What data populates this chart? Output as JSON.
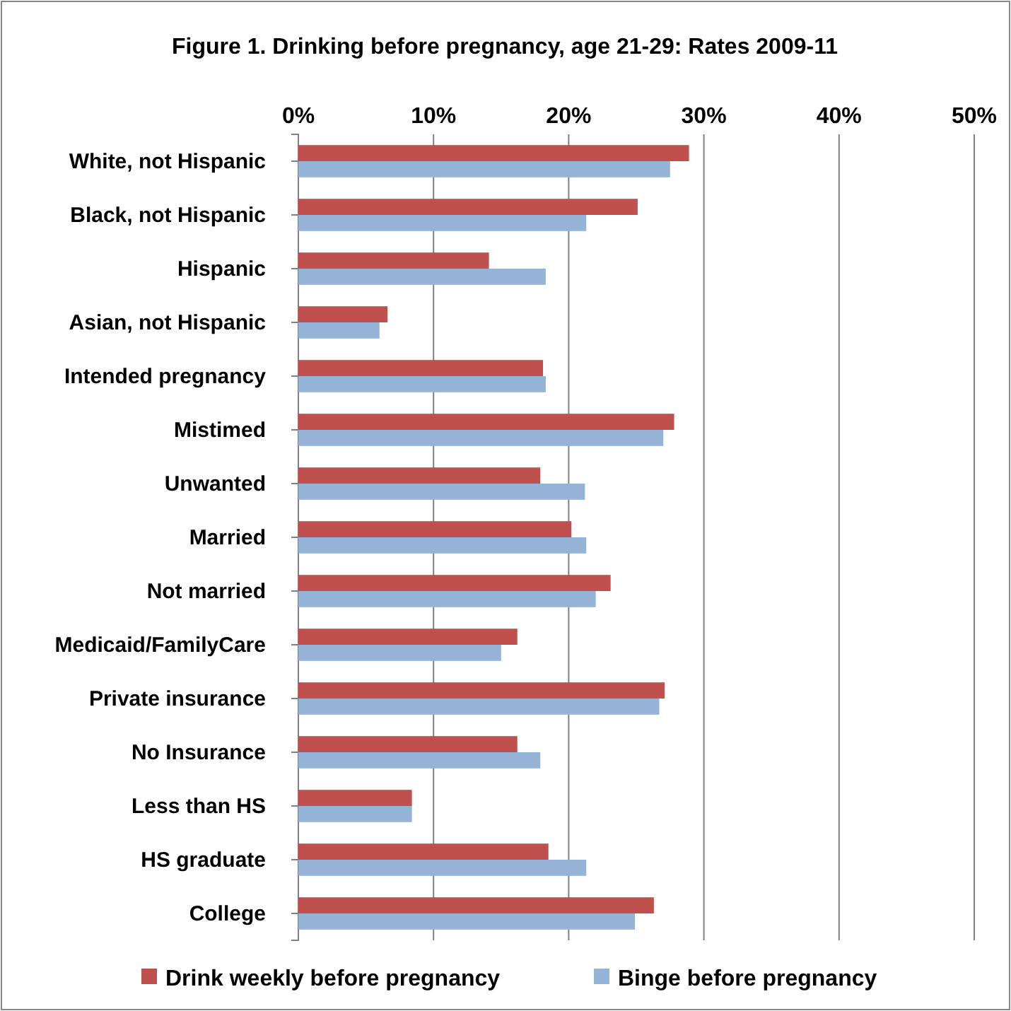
{
  "chart_data": {
    "type": "bar",
    "orientation": "horizontal",
    "title": "Figure 1. Drinking before pregnancy, age 21-29: Rates 2009-11",
    "categories": [
      "White, not Hispanic",
      "Black, not Hispanic",
      "Hispanic",
      "Asian, not Hispanic",
      "Intended pregnancy",
      "Mistimed",
      "Unwanted",
      "Married",
      "Not married",
      "Medicaid/FamilyCare",
      "Private insurance",
      "No Insurance",
      "Less than HS",
      "HS graduate",
      "College"
    ],
    "series": [
      {
        "name": "Drink weekly before pregnancy",
        "color": "#c0504d",
        "values": [
          28.9,
          25.1,
          14.1,
          6.6,
          18.1,
          27.8,
          17.9,
          20.2,
          23.1,
          16.2,
          27.1,
          16.2,
          8.4,
          18.5,
          26.3
        ]
      },
      {
        "name": "Binge before pregnancy",
        "color": "#95b3d7",
        "values": [
          27.5,
          21.3,
          18.3,
          6.0,
          18.3,
          27.0,
          21.2,
          21.3,
          22.0,
          15.0,
          26.7,
          17.9,
          8.4,
          21.3,
          24.9
        ]
      }
    ],
    "xlim": [
      0,
      50
    ],
    "xticks": [
      {
        "value": 0,
        "label": "0%"
      },
      {
        "value": 10,
        "label": "10%"
      },
      {
        "value": 20,
        "label": "20%"
      },
      {
        "value": 30,
        "label": "30%"
      },
      {
        "value": 40,
        "label": "40%"
      },
      {
        "value": 50,
        "label": "50%"
      }
    ],
    "grid": "x",
    "legend": "bottom"
  }
}
